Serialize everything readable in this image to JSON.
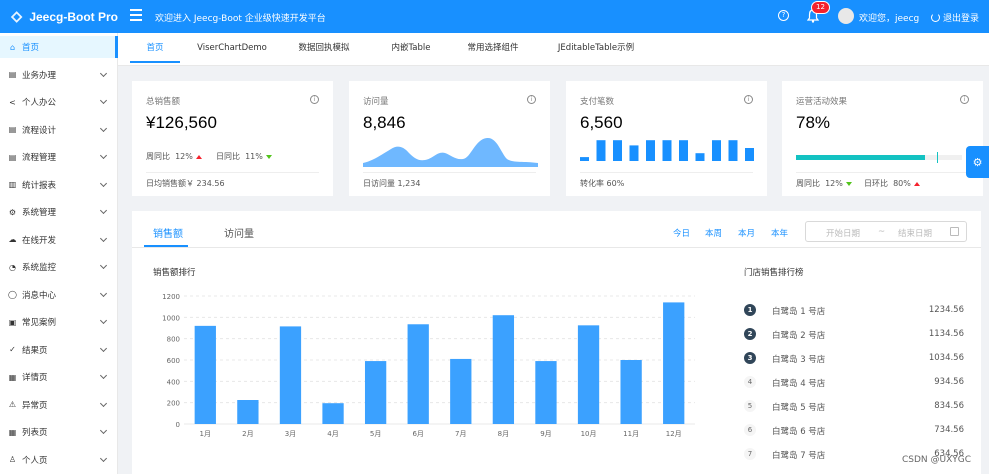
{
  "header": {
    "brand": "Jeecg-Boot Pro",
    "welcome": "欢迎进入 Jeecg-Boot 企业级快速开发平台",
    "help_icon": "help-icon",
    "notification_count": "12",
    "user_greeting": "欢迎您，jeecg",
    "logout": "退出登录"
  },
  "sidebar": {
    "items": [
      {
        "label": "首页",
        "icon": "home-icon",
        "active": true,
        "chev": false
      },
      {
        "label": "业务办理",
        "icon": "bank-icon",
        "chev": true
      },
      {
        "label": "个人办公",
        "icon": "share-icon",
        "chev": true
      },
      {
        "label": "流程设计",
        "icon": "bank-icon",
        "chev": true
      },
      {
        "label": "流程管理",
        "icon": "bank-icon",
        "chev": true
      },
      {
        "label": "统计报表",
        "icon": "chart-icon",
        "chev": true
      },
      {
        "label": "系统管理",
        "icon": "gear-icon",
        "chev": true
      },
      {
        "label": "在线开发",
        "icon": "cloud-icon",
        "chev": true
      },
      {
        "label": "系统监控",
        "icon": "dashboard-icon",
        "chev": true
      },
      {
        "label": "消息中心",
        "icon": "message-icon",
        "chev": true
      },
      {
        "label": "常见案例",
        "icon": "doc-icon",
        "chev": true
      },
      {
        "label": "结果页",
        "icon": "check-circle-icon",
        "chev": true
      },
      {
        "label": "详情页",
        "icon": "profile-icon",
        "chev": true
      },
      {
        "label": "异常页",
        "icon": "warning-icon",
        "chev": true
      },
      {
        "label": "列表页",
        "icon": "table-icon",
        "chev": true
      },
      {
        "label": "个人页",
        "icon": "user-icon",
        "chev": true
      }
    ]
  },
  "tabs": [
    {
      "label": "首页",
      "active": true
    },
    {
      "label": "ViserChartDemo"
    },
    {
      "label": "数据回执模拟"
    },
    {
      "label": "内嵌Table"
    },
    {
      "label": "常用选择组件"
    },
    {
      "label": "JEditableTable示例"
    }
  ],
  "cards": {
    "sales": {
      "title": "总销售额",
      "value": "¥126,560",
      "wow": "周同比",
      "wow_val": "12%",
      "dod": "日同比",
      "dod_val": "11%",
      "foot": "日均销售额￥ 234.56"
    },
    "visits": {
      "title": "访问量",
      "value": "8,846",
      "foot": "日访问量 1,234"
    },
    "payments": {
      "title": "支付笔数",
      "value": "6,560",
      "foot": "转化率 60%"
    },
    "ops": {
      "title": "运营活动效果",
      "value": "78%",
      "progress": 0.78,
      "target": 0.85,
      "wow": "周同比",
      "wow_val": "12%",
      "dod": "日环比",
      "dod_val": "80%"
    }
  },
  "panel": {
    "tab_sales": "销售额",
    "tab_visits": "访问量",
    "today": "今日",
    "week": "本周",
    "month": "本月",
    "year": "本年",
    "start_placeholder": "开始日期",
    "sep": "~",
    "end_placeholder": "结束日期",
    "chart_title": "销售额排行",
    "rank_title": "门店销售排行榜",
    "ranks": [
      {
        "no": "1",
        "name": "白鹭岛 1 号店",
        "value": "1234.56"
      },
      {
        "no": "2",
        "name": "白鹭岛 2 号店",
        "value": "1134.56"
      },
      {
        "no": "3",
        "name": "白鹭岛 3 号店",
        "value": "1034.56"
      },
      {
        "no": "4",
        "name": "白鹭岛 4 号店",
        "value": "934.56"
      },
      {
        "no": "5",
        "name": "白鹭岛 5 号店",
        "value": "834.56"
      },
      {
        "no": "6",
        "name": "白鹭岛 6 号店",
        "value": "734.56"
      },
      {
        "no": "7",
        "name": "白鹭岛 7 号店",
        "value": "634.56"
      }
    ]
  },
  "chart_data": {
    "type": "bar",
    "categories": [
      "1月",
      "2月",
      "3月",
      "4月",
      "5月",
      "6月",
      "7月",
      "8月",
      "9月",
      "10月",
      "11月",
      "12月"
    ],
    "values": [
      920,
      225,
      915,
      195,
      590,
      935,
      610,
      1020,
      590,
      925,
      600,
      1140
    ],
    "yticks": [
      "0",
      "200",
      "400",
      "600",
      "800",
      "1000",
      "1200"
    ],
    "ylim": [
      0,
      1200
    ],
    "color": "#3ba1ff"
  },
  "mini_bars": [
    0.15,
    0.8,
    0.8,
    0.6,
    0.8,
    0.8,
    0.8,
    0.3,
    0.8,
    0.8,
    0.5
  ],
  "watermark": "CSDN @UXYGC"
}
